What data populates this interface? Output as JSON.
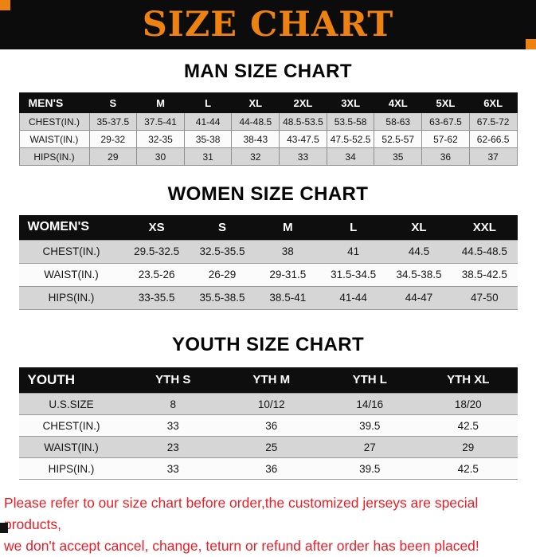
{
  "banner": {
    "title": "SIZE CHART"
  },
  "sections": [
    {
      "heading": "MAN SIZE CHART",
      "table": {
        "header": [
          "MEN'S",
          "S",
          "M",
          "L",
          "XL",
          "2XL",
          "3XL",
          "4XL",
          "5XL",
          "6XL"
        ],
        "rows": [
          [
            "CHEST(IN.)",
            "35-37.5",
            "37.5-41",
            "41-44",
            "44-48.5",
            "48.5-53.5",
            "53.5-58",
            "58-63",
            "63-67.5",
            "67.5-72"
          ],
          [
            "WAIST(IN.)",
            "29-32",
            "32-35",
            "35-38",
            "38-43",
            "43-47.5",
            "47.5-52.5",
            "52.5-57",
            "57-62",
            "62-66.5"
          ],
          [
            "HIPS(IN.)",
            "29",
            "30",
            "31",
            "32",
            "33",
            "34",
            "35",
            "36",
            "37"
          ]
        ]
      }
    },
    {
      "heading": "WOMEN SIZE CHART",
      "table": {
        "header": [
          "WOMEN'S",
          "XS",
          "S",
          "M",
          "L",
          "XL",
          "XXL"
        ],
        "rows": [
          [
            "CHEST(IN.)",
            "29.5-32.5",
            "32.5-35.5",
            "38",
            "41",
            "44.5",
            "44.5-48.5"
          ],
          [
            "WAIST(IN.)",
            "23.5-26",
            "26-29",
            "29-31.5",
            "31.5-34.5",
            "34.5-38.5",
            "38.5-42.5"
          ],
          [
            "HIPS(IN.)",
            "33-35.5",
            "35.5-38.5",
            "38.5-41",
            "41-44",
            "44-47",
            "47-50"
          ]
        ]
      }
    },
    {
      "heading": "YOUTH SIZE CHART",
      "table": {
        "header": [
          "YOUTH",
          "YTH S",
          "YTH M",
          "YTH L",
          "YTH XL"
        ],
        "rows": [
          [
            "U.S.SIZE",
            "8",
            "10/12",
            "14/16",
            "18/20"
          ],
          [
            "CHEST(IN.)",
            "33",
            "36",
            "39.5",
            "42.5"
          ],
          [
            "WAIST(IN.)",
            "23",
            "25",
            "27",
            "29"
          ],
          [
            "HIPS(IN.)",
            "33",
            "36",
            "39.5",
            "42.5"
          ]
        ]
      }
    }
  ],
  "footer": {
    "line1": "Please refer to our size chart before order,the customized jerseys are special products,",
    "line2": "we don't accept cancel, change, teturn or refund after order has been placed!"
  },
  "colors": {
    "banner_bg": "#0c0c0c",
    "accent_orange": "#ee8210",
    "table_header_bg": "#0e0e0e",
    "stripe_gray": "#d6d6d6",
    "footer_red": "#ed1c24"
  }
}
